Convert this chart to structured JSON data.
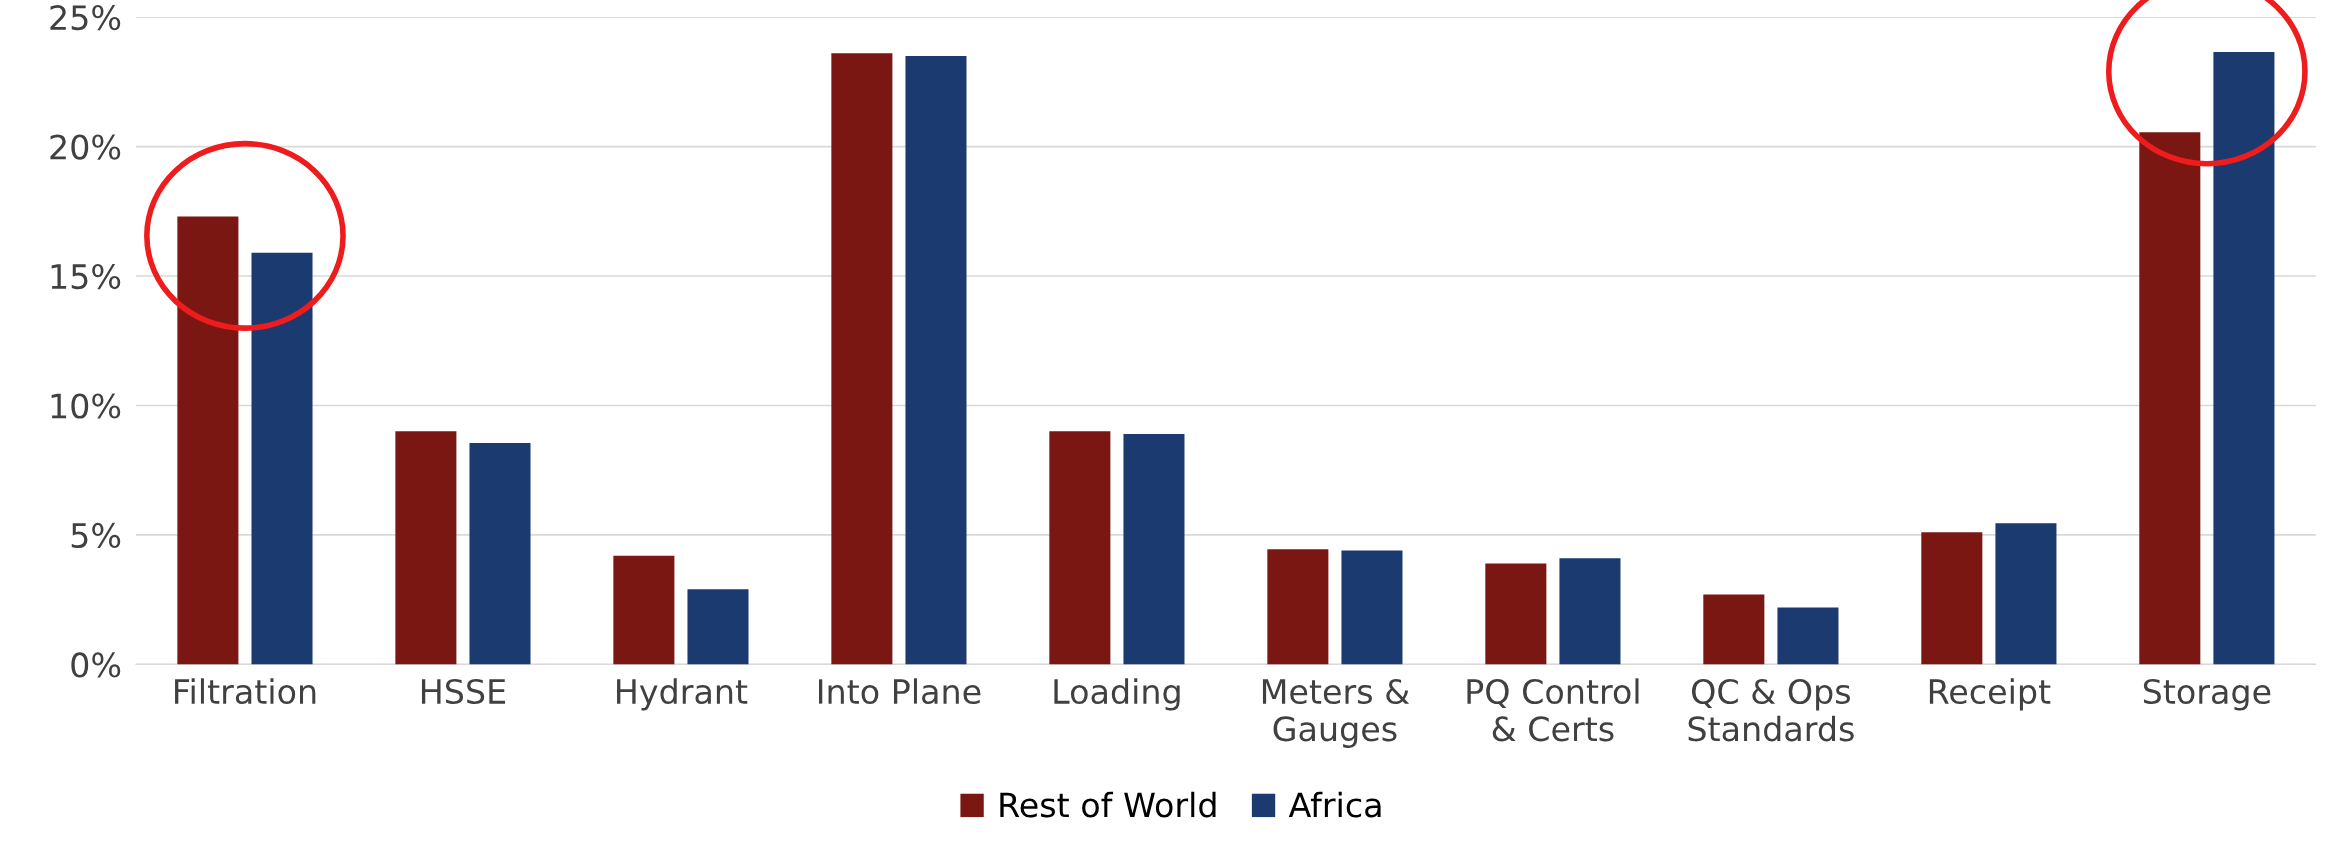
{
  "chart_data": {
    "type": "bar",
    "categories": [
      "Filtration",
      "HSSE",
      "Hydrant",
      "Into Plane",
      "Loading",
      "Meters &\nGauges",
      "PQ Control\n& Certs",
      "QC & Ops\nStandards",
      "Receipt",
      "Storage"
    ],
    "series": [
      {
        "name": "Rest of World",
        "color": "#7a1712",
        "values": [
          17.3,
          9.0,
          4.2,
          23.6,
          9.0,
          4.45,
          3.9,
          2.7,
          5.1,
          20.55
        ]
      },
      {
        "name": "Africa",
        "color": "#1b3a6f",
        "values": [
          15.9,
          8.55,
          2.9,
          23.5,
          8.9,
          4.4,
          4.1,
          2.2,
          5.45,
          23.65
        ]
      }
    ],
    "ylim": [
      0,
      25
    ],
    "yticks": [
      {
        "value": 0,
        "label": "0%"
      },
      {
        "value": 5,
        "label": "5%"
      },
      {
        "value": 10,
        "label": "10%"
      },
      {
        "value": 15,
        "label": "15%"
      },
      {
        "value": 20,
        "label": "20%"
      },
      {
        "value": 25,
        "label": "25%"
      }
    ],
    "grid": "y",
    "legend": "bottom"
  }
}
